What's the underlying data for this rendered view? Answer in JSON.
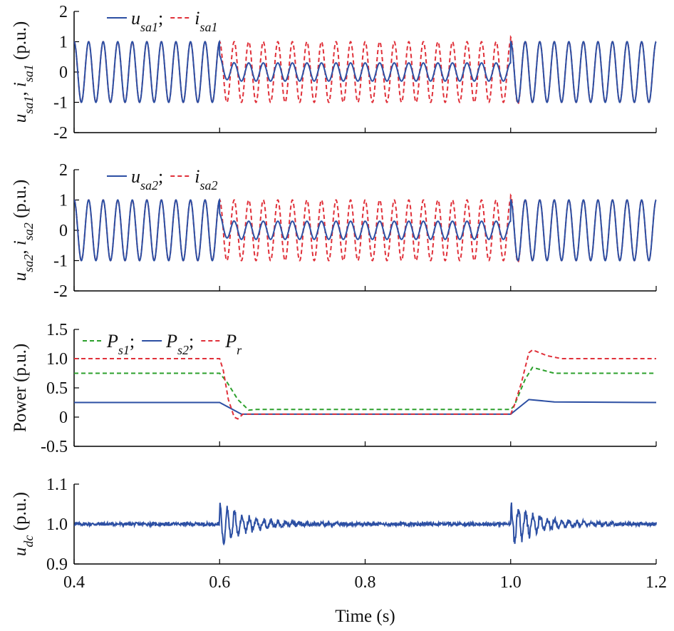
{
  "chart_data": [
    {
      "type": "line",
      "ylabel_parts": [
        {
          "t": "u",
          "it": true
        },
        {
          "t": "sa1",
          "sub": true,
          "it": true
        },
        {
          "t": ", ",
          "it": false
        },
        {
          "t": "i",
          "it": true
        },
        {
          "t": "sa1",
          "sub": true,
          "it": true
        },
        {
          "t": " (p.u.)",
          "it": false
        }
      ],
      "ylim": [
        -2,
        2
      ],
      "yticks": [
        "-2",
        "-1",
        "0",
        "1",
        "2"
      ],
      "legend": [
        {
          "base": "u",
          "sub": "sa1",
          "suffix": ";",
          "color": "#2c4fa3",
          "dash": "solid"
        },
        {
          "base": "i",
          "sub": "sa1",
          "suffix": "",
          "color": "#e0313a",
          "dash": "dashed"
        }
      ],
      "series": [
        {
          "color": "#e0313a",
          "dash": "dashed",
          "amp": [
            1.0,
            1.0,
            1.0
          ],
          "transient": true
        },
        {
          "color": "#2c4fa3",
          "dash": "solid",
          "amp": [
            1.0,
            0.3,
            1.0
          ],
          "transient": true
        }
      ]
    },
    {
      "type": "line",
      "ylabel_parts": [
        {
          "t": "u",
          "it": true
        },
        {
          "t": "sa2",
          "sub": true,
          "it": true
        },
        {
          "t": ", ",
          "it": false
        },
        {
          "t": "i",
          "it": true
        },
        {
          "t": "sa2",
          "sub": true,
          "it": true
        },
        {
          "t": " (p.u.)",
          "it": false
        }
      ],
      "ylim": [
        -2,
        2
      ],
      "yticks": [
        "-2",
        "-1",
        "0",
        "1",
        "2"
      ],
      "legend": [
        {
          "base": "u",
          "sub": "sa2",
          "suffix": ";",
          "color": "#2c4fa3",
          "dash": "solid"
        },
        {
          "base": "i",
          "sub": "sa2",
          "suffix": "",
          "color": "#e0313a",
          "dash": "dashed"
        }
      ],
      "series": [
        {
          "color": "#e0313a",
          "dash": "dashed",
          "amp": [
            1.0,
            1.0,
            1.0
          ],
          "transient": true
        },
        {
          "color": "#2c4fa3",
          "dash": "solid",
          "amp": [
            1.0,
            0.3,
            1.0
          ],
          "transient": true
        }
      ]
    },
    {
      "type": "line",
      "ylabel_parts": [
        {
          "t": "Power (p.u.)",
          "it": false
        }
      ],
      "ylim": [
        -0.5,
        1.5
      ],
      "yticks": [
        "-0.5",
        "0",
        "0.5",
        "1.0",
        "1.5"
      ],
      "legend": [
        {
          "base": "P",
          "sub": "s1",
          "suffix": ";",
          "color": "#2ca02c",
          "dash": "dashed"
        },
        {
          "base": "P",
          "sub": "s2",
          "suffix": ";",
          "color": "#2c4fa3",
          "dash": "solid"
        },
        {
          "base": "P",
          "sub": "r",
          "suffix": "",
          "color": "#e0313a",
          "dash": "dashed"
        }
      ],
      "series": [
        {
          "name": "Ps1",
          "color": "#2ca02c",
          "dash": "dashed",
          "points": [
            [
              0.4,
              0.75
            ],
            [
              0.6,
              0.75
            ],
            [
              0.61,
              0.6
            ],
            [
              0.625,
              0.3
            ],
            [
              0.64,
              0.12
            ],
            [
              0.65,
              0.13
            ],
            [
              1.0,
              0.13
            ],
            [
              1.005,
              0.2
            ],
            [
              1.02,
              0.65
            ],
            [
              1.03,
              0.85
            ],
            [
              1.045,
              0.8
            ],
            [
              1.06,
              0.75
            ],
            [
              1.2,
              0.75
            ]
          ]
        },
        {
          "name": "Ps2",
          "color": "#2c4fa3",
          "dash": "solid",
          "points": [
            [
              0.4,
              0.25
            ],
            [
              0.6,
              0.25
            ],
            [
              0.63,
              0.05
            ],
            [
              1.0,
              0.05
            ],
            [
              1.025,
              0.3
            ],
            [
              1.06,
              0.26
            ],
            [
              1.2,
              0.25
            ]
          ]
        },
        {
          "name": "Pr",
          "color": "#e0313a",
          "dash": "dashed",
          "points": [
            [
              0.4,
              1.0
            ],
            [
              0.6,
              1.0
            ],
            [
              0.605,
              0.8
            ],
            [
              0.612,
              0.3
            ],
            [
              0.62,
              0.0
            ],
            [
              0.625,
              -0.03
            ],
            [
              0.632,
              0.05
            ],
            [
              0.64,
              0.05
            ],
            [
              1.0,
              0.05
            ],
            [
              1.005,
              0.2
            ],
            [
              1.015,
              0.6
            ],
            [
              1.025,
              1.1
            ],
            [
              1.03,
              1.15
            ],
            [
              1.05,
              1.05
            ],
            [
              1.07,
              1.0
            ],
            [
              1.2,
              1.0
            ]
          ]
        }
      ]
    },
    {
      "type": "line",
      "ylabel_parts": [
        {
          "t": "u",
          "it": true
        },
        {
          "t": "dc",
          "sub": true,
          "it": true
        },
        {
          "t": " (p.u.)",
          "it": false
        }
      ],
      "ylim": [
        0.9,
        1.1
      ],
      "yticks": [
        "0.9",
        "1.0",
        "1.1"
      ],
      "legend": [],
      "series": [
        {
          "name": "udc",
          "color": "#2c4fa3",
          "dash": "solid",
          "mean": 1.0,
          "noise": 0.004,
          "disturbances": [
            {
              "t": 0.6,
              "amp": 0.045,
              "decay": 0.04
            },
            {
              "t": 1.0,
              "amp": 0.05,
              "decay": 0.04
            }
          ]
        }
      ]
    }
  ],
  "x_axis": {
    "xlim": [
      0.4,
      1.2
    ],
    "xticks": [
      "0.4",
      "0.6",
      "0.8",
      "1.0",
      "1.2"
    ],
    "xlabel": "Time (s)"
  }
}
